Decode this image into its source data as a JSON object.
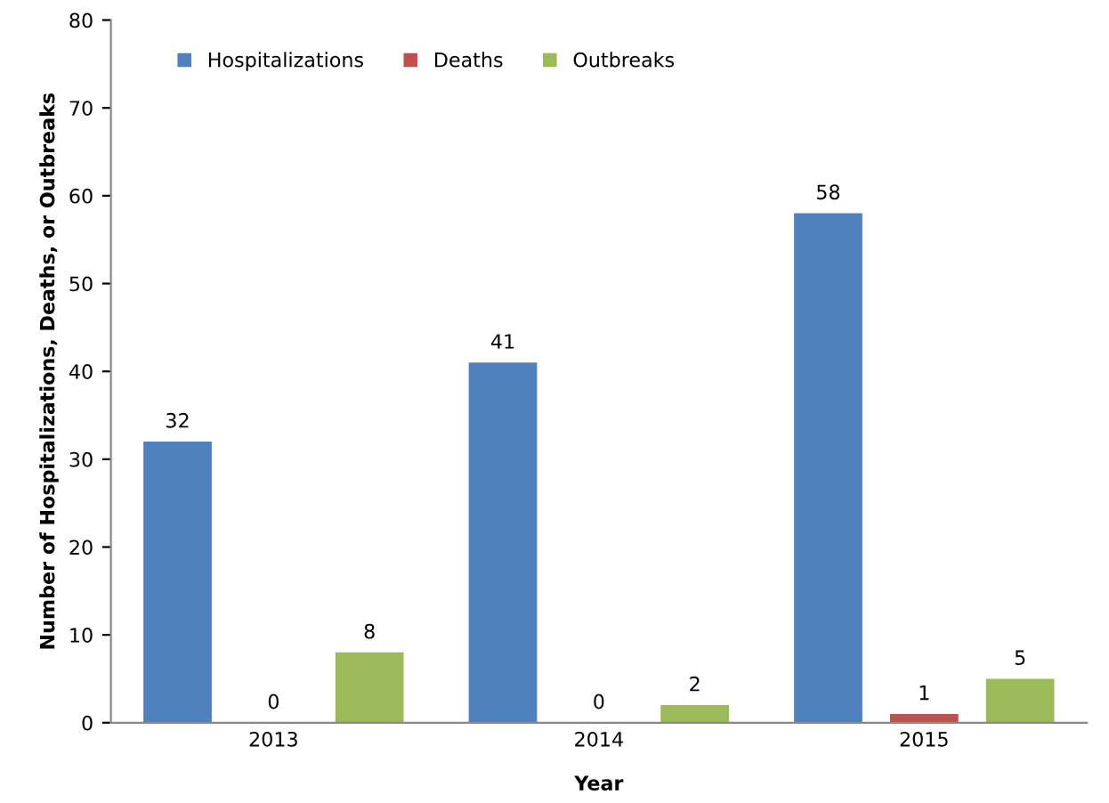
{
  "chart_data": {
    "type": "bar",
    "xlabel": "Year",
    "ylabel": "Number of Hospitalizations, Deaths, or Outbreaks",
    "categories": [
      "2013",
      "2014",
      "2015"
    ],
    "series": [
      {
        "name": "Hospitalizations",
        "color": "#4f81bd",
        "values": [
          32,
          41,
          58
        ]
      },
      {
        "name": "Deaths",
        "color": "#c0504d",
        "values": [
          0,
          0,
          1
        ]
      },
      {
        "name": "Outbreaks",
        "color": "#9bbb59",
        "values": [
          8,
          2,
          5
        ]
      }
    ],
    "ylim": [
      0,
      80
    ],
    "yticks": [
      0,
      10,
      20,
      30,
      40,
      50,
      60,
      70,
      80
    ],
    "grid": false,
    "legend": "top left",
    "data_labels": true
  }
}
